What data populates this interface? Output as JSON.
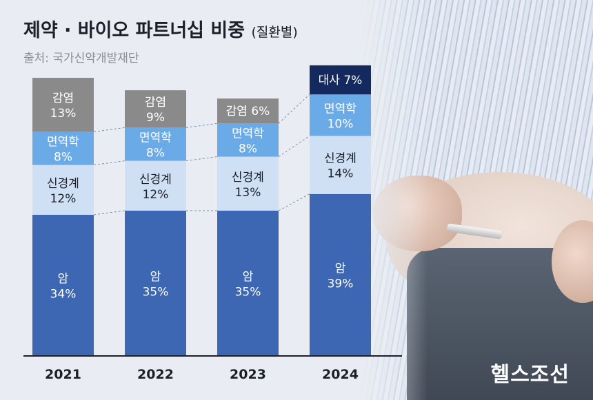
{
  "header": {
    "title": "제약 · 바이오 파트너십 비중",
    "subtitle": "(질환별)",
    "source": "출처: 국가신약개발재단"
  },
  "watermark": "헬스조선",
  "colors": {
    "암": "#3d66b3",
    "신경계": "#cfe0f5",
    "면역학": "#6aaae6",
    "감염": "#8a8a8a",
    "대사": "#142a5e"
  },
  "chart_data": {
    "type": "bar",
    "stacked": true,
    "unit": "%",
    "categories": [
      "2021",
      "2022",
      "2023",
      "2024"
    ],
    "series": [
      {
        "name": "암",
        "values": [
          34,
          35,
          35,
          39
        ]
      },
      {
        "name": "신경계",
        "values": [
          12,
          12,
          13,
          14
        ]
      },
      {
        "name": "면역학",
        "values": [
          8,
          8,
          8,
          10
        ]
      },
      {
        "name": "감염",
        "values": [
          13,
          9,
          6,
          0
        ]
      },
      {
        "name": "대사",
        "values": [
          0,
          0,
          0,
          7
        ]
      }
    ],
    "labels": [
      [
        [
          "암",
          "34%"
        ],
        [
          "신경계",
          "12%"
        ],
        [
          "면역학",
          "8%"
        ],
        [
          "감염",
          "13%"
        ]
      ],
      [
        [
          "암",
          "35%"
        ],
        [
          "신경계",
          "12%"
        ],
        [
          "면역학",
          "8%"
        ],
        [
          "감염",
          "9%"
        ]
      ],
      [
        [
          "암",
          "35%"
        ],
        [
          "신경계",
          "13%"
        ],
        [
          "면역학",
          "8%"
        ],
        [
          "감염 6%"
        ]
      ],
      [
        [
          "암",
          "39%"
        ],
        [
          "신경계",
          "14%"
        ],
        [
          "면역학",
          "10%"
        ],
        [
          "대사 7%"
        ]
      ]
    ]
  }
}
